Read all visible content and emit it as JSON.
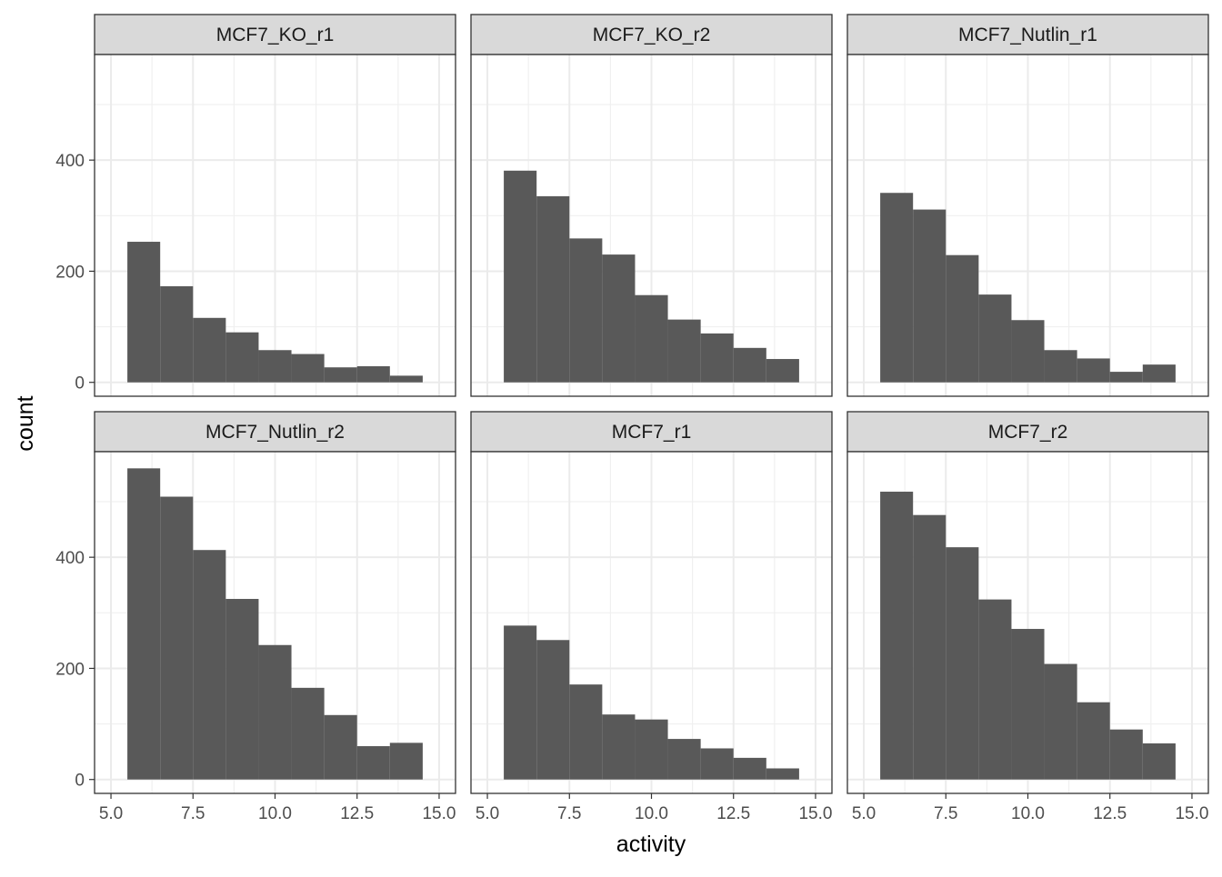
{
  "chart_data": {
    "type": "bar",
    "subtype": "histogram-facets",
    "xlabel": "activity",
    "ylabel": "count",
    "xlim": [
      4.5,
      15.5
    ],
    "ylim": [
      -25,
      590
    ],
    "x_ticks": [
      5.0,
      7.5,
      10.0,
      12.5,
      15.0
    ],
    "x_tick_labels": [
      "5.0",
      "7.5",
      "10.0",
      "12.5",
      "15.0"
    ],
    "y_ticks": [
      0,
      200,
      400
    ],
    "y_tick_labels": [
      "0",
      "200",
      "400"
    ],
    "bin_edges": [
      5.5,
      6.5,
      7.5,
      8.5,
      9.5,
      10.5,
      11.5,
      12.5,
      13.5,
      14.5
    ],
    "grid": true,
    "bar_color": "#595959",
    "strip_color": "#d9d9d9",
    "panels": [
      {
        "name": "MCF7_KO_r1",
        "values": [
          253,
          173,
          116,
          90,
          58,
          51,
          27,
          29,
          12
        ]
      },
      {
        "name": "MCF7_KO_r2",
        "values": [
          381,
          335,
          259,
          230,
          157,
          113,
          88,
          62,
          42
        ]
      },
      {
        "name": "MCF7_Nutlin_r1",
        "values": [
          341,
          311,
          229,
          158,
          112,
          58,
          43,
          19,
          32
        ]
      },
      {
        "name": "MCF7_Nutlin_r2",
        "values": [
          560,
          509,
          413,
          325,
          242,
          165,
          116,
          60,
          66
        ]
      },
      {
        "name": "MCF7_r1",
        "values": [
          277,
          251,
          171,
          117,
          108,
          73,
          56,
          39,
          20
        ]
      },
      {
        "name": "MCF7_r2",
        "values": [
          518,
          476,
          418,
          324,
          271,
          208,
          139,
          90,
          65
        ]
      }
    ]
  }
}
